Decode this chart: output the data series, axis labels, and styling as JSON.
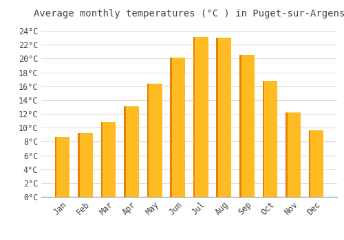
{
  "title": "Average monthly temperatures (°C ) in Puget-sur-Argens",
  "months": [
    "Jan",
    "Feb",
    "Mar",
    "Apr",
    "May",
    "Jun",
    "Jul",
    "Aug",
    "Sep",
    "Oct",
    "Nov",
    "Dec"
  ],
  "values": [
    8.6,
    9.2,
    10.8,
    13.1,
    16.4,
    20.1,
    23.1,
    23.0,
    20.5,
    16.8,
    12.2,
    9.6
  ],
  "bar_color": "#FFBB22",
  "bar_left_edge_color": "#E88000",
  "background_color": "#FFFFFF",
  "plot_bg_color": "#FFFFFF",
  "grid_color": "#DDDDDD",
  "text_color": "#444444",
  "ylim": [
    0,
    25
  ],
  "ytick_step": 2,
  "title_fontsize": 10,
  "tick_fontsize": 8.5,
  "font_family": "monospace"
}
